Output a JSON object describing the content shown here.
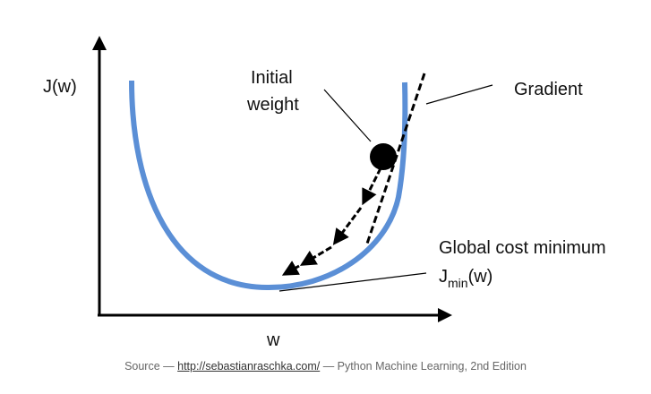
{
  "diagram": {
    "y_axis_label": "J(w)",
    "x_axis_label": "w",
    "initial_weight_line1": "Initial",
    "initial_weight_line2": "weight",
    "gradient_label": "Gradient",
    "minimum_label": "Global cost minimum",
    "jmin_prefix": "J",
    "jmin_sub": "min",
    "jmin_suffix": "(w)",
    "curve_color": "#5b8fd6",
    "ball_color": "#000000",
    "icons": [
      "cost-curve",
      "initial-weight-ball",
      "descent-step-arrow",
      "gradient-tangent-line"
    ]
  },
  "caption": {
    "prefix": "Source — ",
    "link_text": "http://sebastianraschka.com/",
    "suffix": " — Python Machine Learning, 2nd Edition"
  }
}
